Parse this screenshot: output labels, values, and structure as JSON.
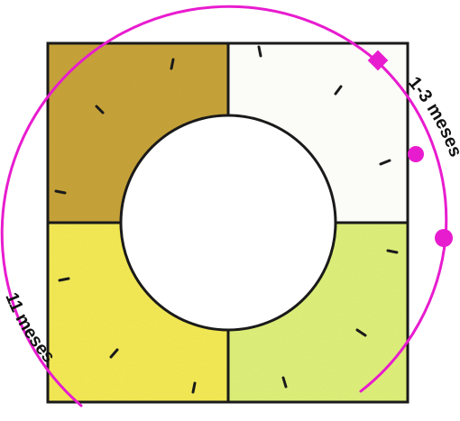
{
  "quadrants": [
    {
      "name": "top-right",
      "color": "#fbfbf7"
    },
    {
      "name": "bottom-right",
      "color": "#dff07a"
    },
    {
      "name": "bottom-left",
      "color": "#f5ea55"
    },
    {
      "name": "top-left",
      "color": "#c8a43a"
    }
  ],
  "colors": {
    "outline": "#1a1a1a",
    "arc": "#e81ccf",
    "label": "#111111"
  },
  "labels": {
    "short_period": "1-3 meses",
    "long_period": "11 meses"
  }
}
